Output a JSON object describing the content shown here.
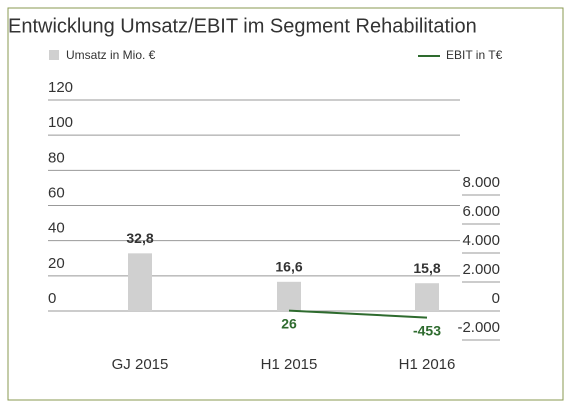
{
  "chart_data": {
    "type": "bar_line",
    "title": "Entwicklung Umsatz/EBIT im Segment Rehabilitation",
    "categories": [
      "GJ 2015",
      "H1 2015",
      "H1 2016"
    ],
    "series": [
      {
        "name": "Umsatz in Mio. €",
        "color": "#d0d0d0",
        "type": "bar",
        "values": [
          32.8,
          16.6,
          15.8
        ],
        "value_labels": [
          "32,8",
          "16,6",
          "15,8"
        ]
      },
      {
        "name": "EBIT in T€",
        "color": "#2e6b2e",
        "type": "line",
        "axis": "y2",
        "values": [
          null,
          26,
          -453
        ]
      }
    ],
    "ylim": [
      0,
      120
    ],
    "yticks": [
      0,
      20,
      40,
      60,
      80,
      100,
      120
    ],
    "y2lim": [
      -2000,
      8000
    ],
    "y2ticks": [
      {
        "value": -2000,
        "label": "-2.000"
      },
      0,
      {
        "value": 2000,
        "label": "2.000"
      },
      {
        "value": 4000,
        "label": "4.000"
      },
      {
        "value": 6000,
        "label": "6.000"
      },
      {
        "value": 8000,
        "label": "8.000"
      }
    ],
    "grid": true
  }
}
